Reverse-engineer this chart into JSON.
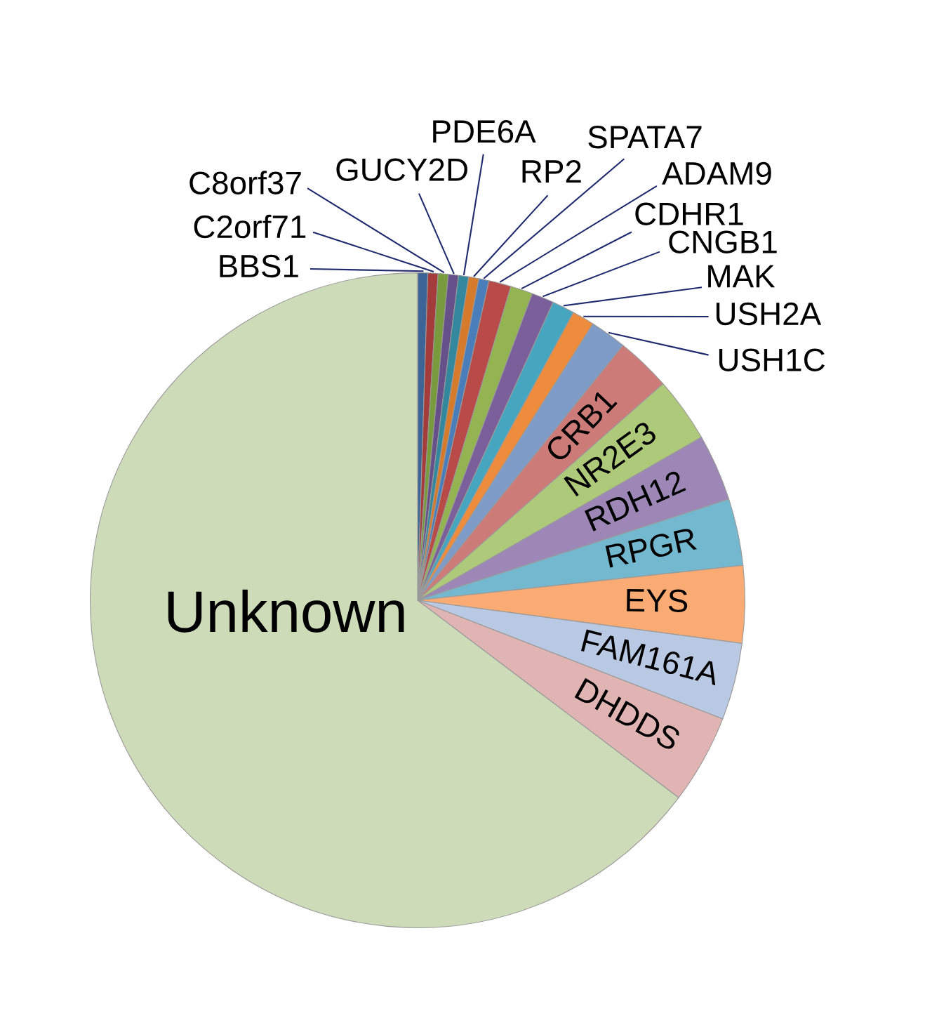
{
  "chart_data": {
    "type": "pie",
    "categories": [
      "BBS1",
      "C2orf71",
      "C8orf37",
      "GUCY2D",
      "PDE6A",
      "RP2",
      "SPATA7",
      "ADAM9",
      "CDHR1",
      "CNGB1",
      "MAK",
      "USH2A",
      "USH1C",
      "CRB1",
      "NR2E3",
      "RDH12",
      "RPGR",
      "EYS",
      "FAM161A",
      "DHDDS",
      "Unknown"
    ],
    "values": [
      0.5,
      0.5,
      0.5,
      0.5,
      0.5,
      0.5,
      0.5,
      1.1,
      1.1,
      1.1,
      1.1,
      1.1,
      1.8,
      2.7,
      3.2,
      3.3,
      3.3,
      3.8,
      3.8,
      4.4,
      64.7
    ],
    "colors": [
      "#3c6496",
      "#a33c3a",
      "#7a9a3e",
      "#65508a",
      "#33889e",
      "#d67a2c",
      "#4a7ebb",
      "#b84a47",
      "#94b452",
      "#7a5f9a",
      "#46a6bf",
      "#ec8c3c",
      "#7f9cc9",
      "#cd7b79",
      "#afc97a",
      "#9d87b6",
      "#74b8cf",
      "#f9ab73",
      "#b9c9e3",
      "#e0b4b3",
      "#cddbb8"
    ]
  }
}
